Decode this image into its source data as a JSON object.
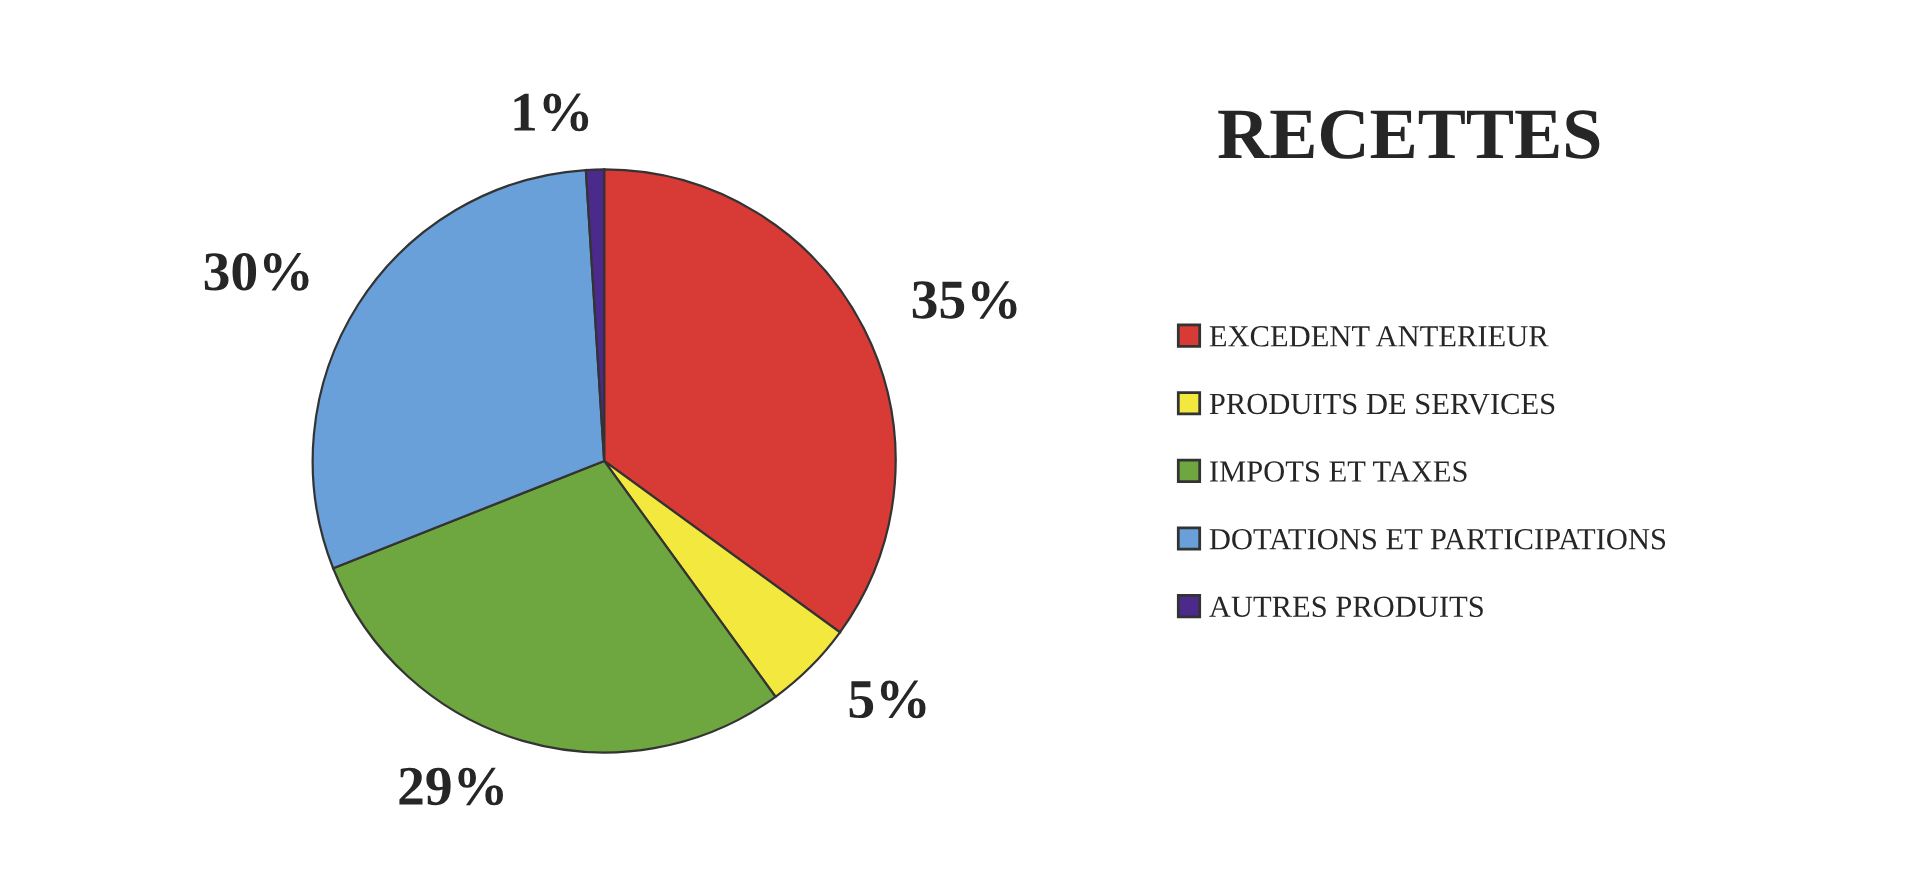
{
  "chart_data": {
    "type": "pie",
    "title": "RECETTES",
    "categories": [
      "EXCEDENT ANTERIEUR",
      "PRODUITS DE SERVICES",
      "IMPOTS ET TAXES",
      "DOTATIONS ET PARTICIPATIONS",
      "AUTRES PRODUITS"
    ],
    "values": [
      35,
      5,
      29,
      30,
      1
    ],
    "value_labels": [
      "35%",
      "5%",
      "29%",
      "30%",
      "1%"
    ],
    "colors": [
      "#d83a36",
      "#f3e83e",
      "#6ea63f",
      "#6aa0da",
      "#4b2a8c"
    ],
    "legend": "right"
  }
}
